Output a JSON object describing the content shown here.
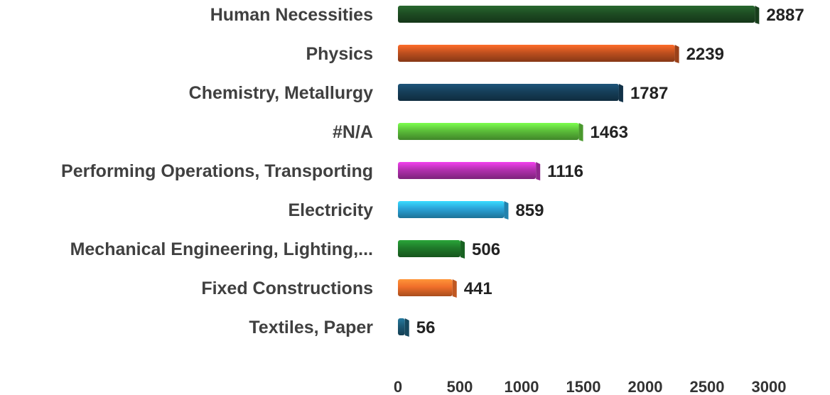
{
  "chart_data": {
    "type": "bar",
    "orientation": "horizontal",
    "title": "",
    "xlabel": "",
    "ylabel": "",
    "categories": [
      "Human Necessities",
      "Physics",
      "Chemistry, Metallurgy",
      "#N/A",
      "Performing Operations, Transporting",
      "Electricity",
      "Mechanical Engineering, Lighting,...",
      "Fixed Constructions",
      "Textiles, Paper"
    ],
    "values": [
      2887,
      2239,
      1787,
      1463,
      1116,
      859,
      506,
      441,
      56
    ],
    "value_labels": [
      "2887",
      "2239",
      "1787",
      "1463",
      "1116",
      "859",
      "506",
      "441",
      "56"
    ],
    "colors": [
      "#1e4d23",
      "#c0501f",
      "#163f5a",
      "#5cbf3a",
      "#b330b0",
      "#2aa3d8",
      "#1f7a2a",
      "#f06e2a",
      "#1c5a76"
    ],
    "xlim": [
      0,
      3000
    ],
    "xticks": [
      "0",
      "500",
      "1000",
      "1500",
      "2000",
      "2500",
      "3000"
    ],
    "grid": false,
    "legend": "none"
  }
}
